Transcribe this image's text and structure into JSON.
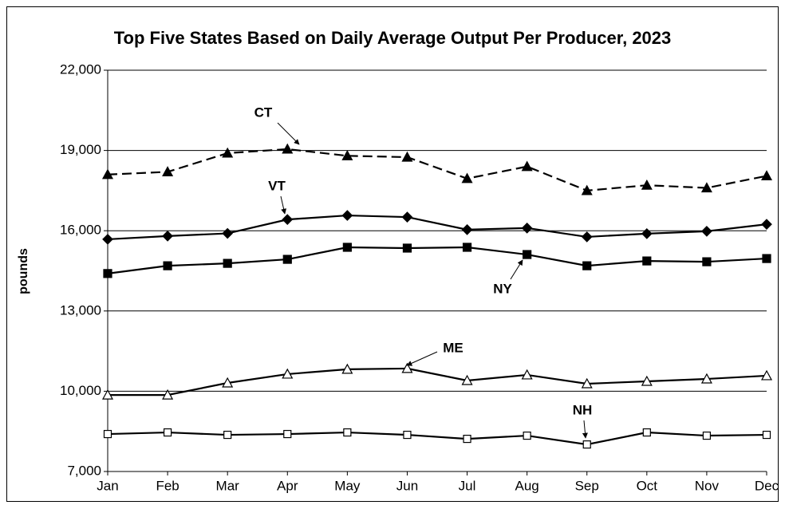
{
  "chart_data": {
    "type": "line",
    "title": "Top Five States Based on Daily Average Output Per Producer, 2023",
    "ylabel": "pounds",
    "categories": [
      "Jan",
      "Feb",
      "Mar",
      "Apr",
      "May",
      "Jun",
      "Jul",
      "Aug",
      "Sep",
      "Oct",
      "Nov",
      "Dec"
    ],
    "ylim": [
      7000,
      22000
    ],
    "yticks": [
      {
        "value": 7000,
        "label": "7,000"
      },
      {
        "value": 10000,
        "label": "10,000"
      },
      {
        "value": 13000,
        "label": "13,000"
      },
      {
        "value": 16000,
        "label": "16,000"
      },
      {
        "value": 19000,
        "label": "19,000"
      },
      {
        "value": 22000,
        "label": "22,000"
      }
    ],
    "grid": true,
    "series": [
      {
        "name": "CT",
        "color": "#000000",
        "marker": "triangle",
        "filled": true,
        "dashed": true,
        "values": [
          18100,
          18200,
          18900,
          19050,
          18800,
          18750,
          17950,
          18400,
          17500,
          17700,
          17600,
          18050
        ]
      },
      {
        "name": "VT",
        "color": "#000000",
        "marker": "diamond",
        "filled": true,
        "dashed": false,
        "values": [
          15680,
          15800,
          15900,
          16420,
          16570,
          16510,
          16040,
          16100,
          15770,
          15890,
          15980,
          16240
        ]
      },
      {
        "name": "NY",
        "color": "#000000",
        "marker": "square",
        "filled": true,
        "dashed": false,
        "values": [
          14400,
          14690,
          14780,
          14930,
          15380,
          15350,
          15380,
          15110,
          14690,
          14870,
          14840,
          14960
        ]
      },
      {
        "name": "ME",
        "color": "#000000",
        "marker": "triangle",
        "filled": false,
        "dashed": false,
        "values": [
          9860,
          9860,
          10310,
          10640,
          10820,
          10850,
          10400,
          10610,
          10280,
          10370,
          10460,
          10580
        ]
      },
      {
        "name": "NH",
        "color": "#000000",
        "marker": "square",
        "filled": false,
        "dashed": false,
        "values": [
          8400,
          8460,
          8370,
          8400,
          8460,
          8370,
          8220,
          8340,
          8010,
          8460,
          8340,
          8370
        ]
      }
    ]
  }
}
